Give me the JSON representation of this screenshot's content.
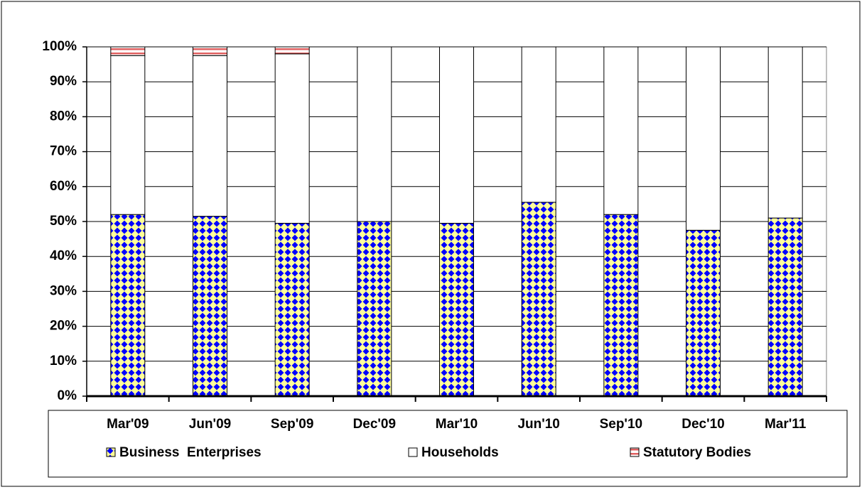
{
  "chart_data": {
    "type": "stacked-bar",
    "categories": [
      "Mar'09",
      "Jun'09",
      "Sep'09",
      "Dec'09",
      "Mar'10",
      "Jun'10",
      "Sep'10",
      "Dec'10",
      "Mar'11"
    ],
    "series": [
      {
        "name": "Business  Enterprises",
        "color": "#0000ff",
        "pattern": "diamond",
        "values": [
          52,
          51.5,
          49.5,
          50,
          49.5,
          55.5,
          52,
          47.5,
          51
        ]
      },
      {
        "name": "Households",
        "color": "#ffffff",
        "pattern": "none",
        "values": [
          45.5,
          46,
          48.5,
          50,
          50.5,
          44.5,
          48,
          52.5,
          49
        ]
      },
      {
        "name": "Statutory Bodies",
        "color": "#e06060",
        "pattern": "stripes",
        "values": [
          2.5,
          2.5,
          2,
          0,
          0,
          0,
          0,
          0,
          0
        ]
      }
    ],
    "ylim": [
      0,
      100
    ],
    "yticks": [
      {
        "value": 0,
        "label": "0%"
      },
      {
        "value": 10,
        "label": "10%"
      },
      {
        "value": 20,
        "label": "20%"
      },
      {
        "value": 30,
        "label": "30%"
      },
      {
        "value": 40,
        "label": "40%"
      },
      {
        "value": 50,
        "label": "50%"
      },
      {
        "value": 60,
        "label": "60%"
      },
      {
        "value": 70,
        "label": "70%"
      },
      {
        "value": 80,
        "label": "80%"
      },
      {
        "value": 90,
        "label": "90%"
      },
      {
        "value": 100,
        "label": "100%"
      }
    ],
    "grid": true,
    "legend": "bottom"
  }
}
